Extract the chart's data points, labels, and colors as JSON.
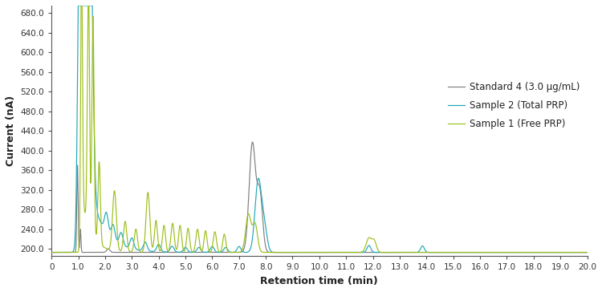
{
  "xlabel": "Retention time (min)",
  "ylabel": "Current (nA)",
  "xlim": [
    0,
    20.0
  ],
  "ylim": [
    185,
    695
  ],
  "yticks": [
    200.0,
    240.0,
    280.0,
    320.0,
    360.0,
    400.0,
    440.0,
    480.0,
    520.0,
    560.0,
    600.0,
    640.0,
    680.0
  ],
  "xticks": [
    0,
    1.0,
    2.0,
    3.0,
    4.0,
    5.0,
    6.0,
    7.0,
    8.0,
    9.0,
    10.0,
    11.0,
    12.0,
    13.0,
    14.0,
    15.0,
    16.0,
    17.0,
    18.0,
    19.0,
    20.0
  ],
  "colors": {
    "standard": "#7f7f7f",
    "sample2": "#1fa8b8",
    "sample1": "#9dbf1a"
  },
  "legend": [
    {
      "label": "Standard 4 (3.0 μg/mL)",
      "color": "#7f7f7f"
    },
    {
      "label": "Sample 2 (Total PRP)",
      "color": "#1fa8b8"
    },
    {
      "label": "Sample 1 (Free PRP)",
      "color": "#9dbf1a"
    }
  ],
  "baseline": 193.0
}
